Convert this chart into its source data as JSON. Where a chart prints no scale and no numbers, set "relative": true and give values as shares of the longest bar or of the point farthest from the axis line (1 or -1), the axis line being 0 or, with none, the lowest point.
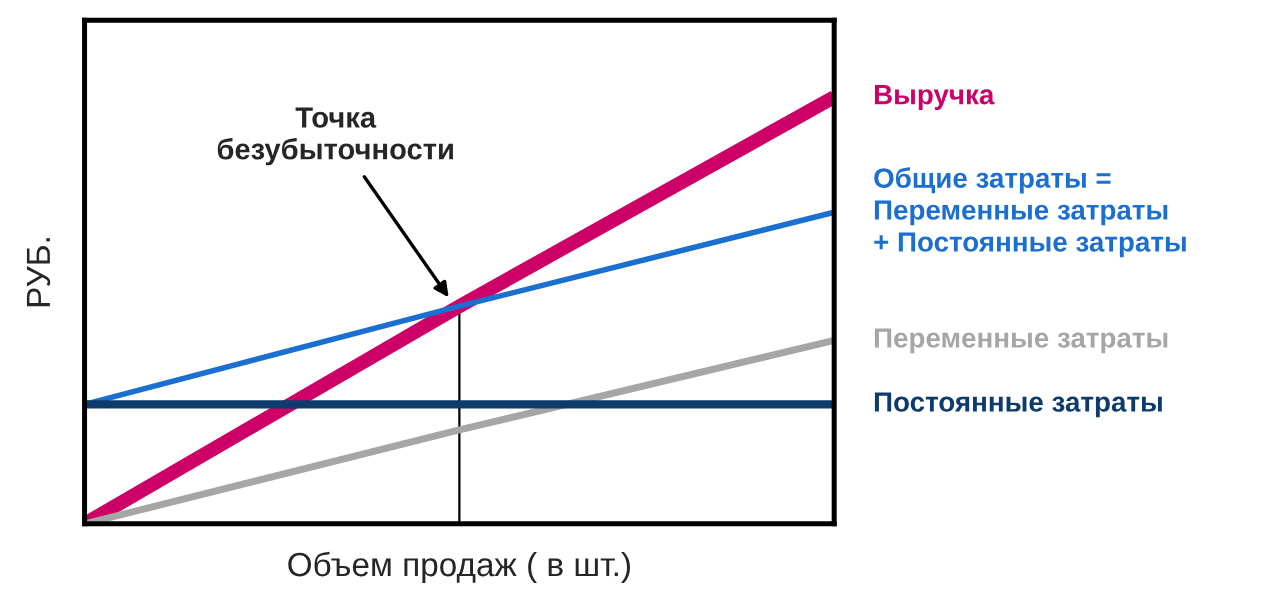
{
  "chart_data": {
    "type": "line",
    "relative": true,
    "xlabel": "Объем продаж ( в шт.)",
    "ylabel": "РУБ.",
    "categories": [
      null,
      null,
      null
    ],
    "series": [
      {
        "name": "Выручка",
        "color": "#cc0066",
        "values": [
          0,
          0.51,
          1
        ]
      },
      {
        "name": "Общие затраты =\nПеременные затраты\n+ Постоянные затраты",
        "color": "#1a6fd0",
        "values": [
          0.28,
          0.51,
          0.73
        ]
      },
      {
        "name": "Переменные затраты",
        "color": "#a6a6a6",
        "values": [
          0,
          0.22,
          0.43
        ]
      },
      {
        "name": "Постоянные затраты",
        "color": "#0d3b6e",
        "values": [
          0.28,
          0.28,
          0.28
        ]
      }
    ],
    "annotations": [
      "Точка\nбезубыточности"
    ],
    "legend": "right",
    "marker": "none",
    "line_style": "solid"
  }
}
